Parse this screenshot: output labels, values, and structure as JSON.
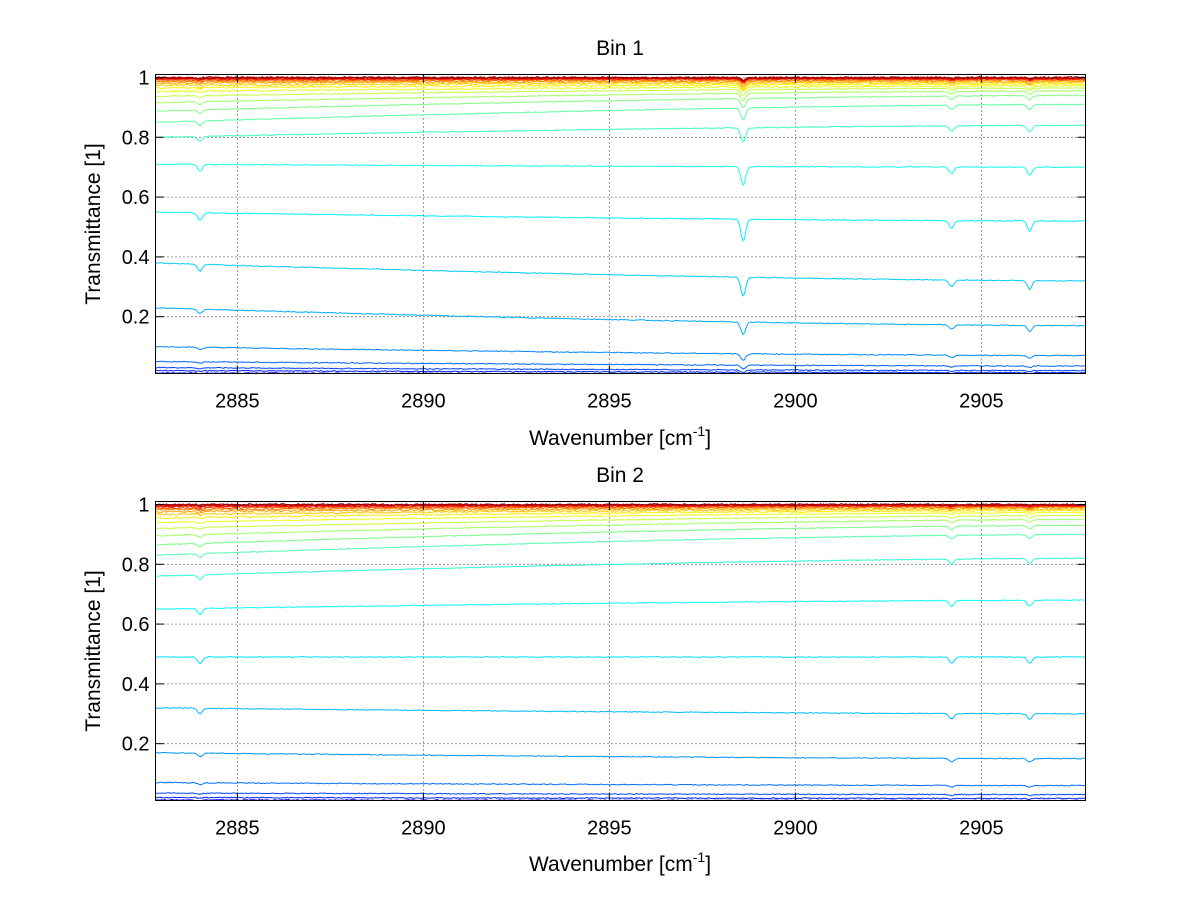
{
  "chart_data": [
    {
      "type": "line",
      "title": "Bin 1",
      "xlabel": "Wavenumber [cm",
      "xlabel_sup": "-1",
      "xlabel_suffix": "]",
      "ylabel": "Transmittance [1]",
      "xlim": [
        2882.8,
        2907.8
      ],
      "ylim": [
        0.01,
        1.01
      ],
      "xticks": [
        2885,
        2890,
        2895,
        2900,
        2905
      ],
      "xtick_labels": [
        "2885",
        "2890",
        "2895",
        "2900",
        "2905"
      ],
      "yticks": [
        0.2,
        0.4,
        0.6,
        0.8,
        1
      ],
      "ytick_labels": [
        "0.2",
        "0.4",
        "0.6",
        "0.8",
        "1"
      ],
      "grid": true,
      "colormap": "jet",
      "series_levels": {
        "start": [
          1.0,
          0.999,
          0.998,
          0.997,
          0.995,
          0.993,
          0.99,
          0.986,
          0.981,
          0.974,
          0.965,
          0.953,
          0.937,
          0.916,
          0.888,
          0.85,
          0.8,
          0.71,
          0.55,
          0.38,
          0.23,
          0.1,
          0.05,
          0.03,
          0.02,
          0.012
        ],
        "end": [
          1.0,
          0.999,
          0.998,
          0.997,
          0.996,
          0.995,
          0.993,
          0.99,
          0.987,
          0.983,
          0.978,
          0.972,
          0.965,
          0.955,
          0.94,
          0.91,
          0.84,
          0.7,
          0.52,
          0.32,
          0.17,
          0.07,
          0.035,
          0.02,
          0.013,
          0.008
        ]
      },
      "absorption_lines": [
        {
          "wavenumber": 2884.0,
          "strength": 0.35
        },
        {
          "wavenumber": 2898.6,
          "strength": 1.0
        },
        {
          "wavenumber": 2904.2,
          "strength": 0.35
        },
        {
          "wavenumber": 2906.3,
          "strength": 0.45
        }
      ]
    },
    {
      "type": "line",
      "title": "Bin 2",
      "xlabel": "Wavenumber [cm",
      "xlabel_sup": "-1",
      "xlabel_suffix": "]",
      "ylabel": "Transmittance [1]",
      "xlim": [
        2882.8,
        2907.8
      ],
      "ylim": [
        0.01,
        1.01
      ],
      "xticks": [
        2885,
        2890,
        2895,
        2900,
        2905
      ],
      "xtick_labels": [
        "2885",
        "2890",
        "2895",
        "2900",
        "2905"
      ],
      "yticks": [
        0.2,
        0.4,
        0.6,
        0.8,
        1
      ],
      "ytick_labels": [
        "0.2",
        "0.4",
        "0.6",
        "0.8",
        "1"
      ],
      "grid": true,
      "colormap": "jet",
      "series_levels": {
        "start": [
          1.0,
          0.999,
          0.997,
          0.995,
          0.992,
          0.988,
          0.983,
          0.976,
          0.967,
          0.955,
          0.94,
          0.92,
          0.895,
          0.865,
          0.83,
          0.76,
          0.65,
          0.49,
          0.32,
          0.17,
          0.07,
          0.035,
          0.02,
          0.012
        ],
        "end": [
          1.0,
          0.999,
          0.998,
          0.997,
          0.996,
          0.994,
          0.992,
          0.989,
          0.985,
          0.98,
          0.973,
          0.963,
          0.95,
          0.93,
          0.9,
          0.82,
          0.68,
          0.49,
          0.3,
          0.15,
          0.06,
          0.03,
          0.017,
          0.01
        ]
      },
      "absorption_lines": [
        {
          "wavenumber": 2884.0,
          "strength": 0.3
        },
        {
          "wavenumber": 2904.2,
          "strength": 0.3
        },
        {
          "wavenumber": 2906.3,
          "strength": 0.3
        }
      ]
    }
  ]
}
